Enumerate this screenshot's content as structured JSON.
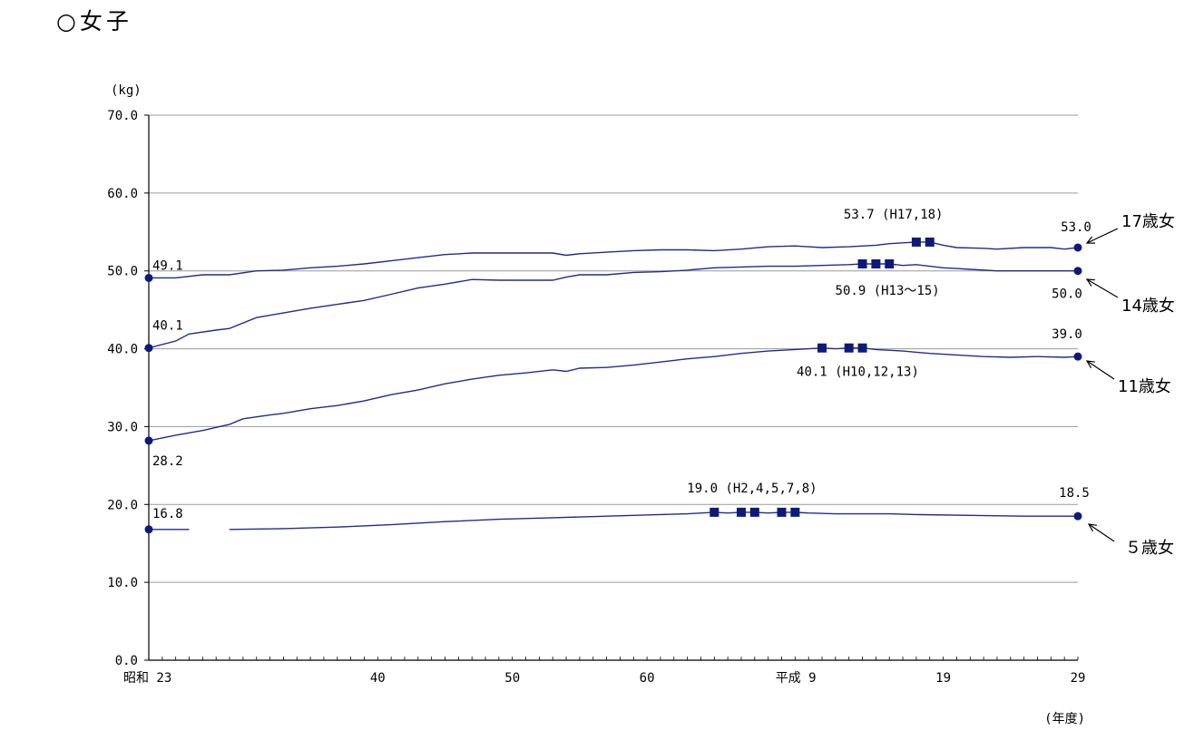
{
  "title": "○女子",
  "colors": {
    "line": "#1f2d8c",
    "marker": "#0d1a7a",
    "grid": "#9a9a9a",
    "axis": "#000000"
  },
  "chart_data": {
    "type": "line",
    "ylabel": "(kg)",
    "xlabel": "(年度)",
    "ylim": [
      0,
      70
    ],
    "xlim": [
      1948,
      2017
    ],
    "grid": true,
    "y_ticks": [
      "70.0",
      "60.0",
      "50.0",
      "40.0",
      "30.0",
      "20.0",
      "10.0",
      "0.0"
    ],
    "x_ticks": [
      {
        "year": 1948,
        "label": "昭和 23"
      },
      {
        "year": 1965,
        "label": "40"
      },
      {
        "year": 1975,
        "label": "50"
      },
      {
        "year": 1985,
        "label": "60"
      },
      {
        "year": 1997,
        "label": "平成 9"
      },
      {
        "year": 2007,
        "label": "19"
      },
      {
        "year": 2017,
        "label": "29"
      }
    ],
    "series": [
      {
        "name": "17歳女",
        "points": [
          [
            1948,
            49.1
          ],
          [
            1950,
            49.1
          ],
          [
            1952,
            49.5
          ],
          [
            1954,
            49.5
          ],
          [
            1956,
            50.0
          ],
          [
            1958,
            50.1
          ],
          [
            1960,
            50.4
          ],
          [
            1962,
            50.6
          ],
          [
            1964,
            50.9
          ],
          [
            1966,
            51.3
          ],
          [
            1968,
            51.7
          ],
          [
            1970,
            52.1
          ],
          [
            1972,
            52.3
          ],
          [
            1975,
            52.3
          ],
          [
            1976,
            52.3
          ],
          [
            1978,
            52.3
          ],
          [
            1979,
            52.0
          ],
          [
            1980,
            52.2
          ],
          [
            1982,
            52.4
          ],
          [
            1984,
            52.6
          ],
          [
            1986,
            52.7
          ],
          [
            1988,
            52.7
          ],
          [
            1990,
            52.6
          ],
          [
            1992,
            52.8
          ],
          [
            1994,
            53.1
          ],
          [
            1996,
            53.2
          ],
          [
            1998,
            53.0
          ],
          [
            2000,
            53.1
          ],
          [
            2002,
            53.3
          ],
          [
            2003,
            53.5
          ],
          [
            2004,
            53.6
          ],
          [
            2005,
            53.7
          ],
          [
            2006,
            53.7
          ],
          [
            2007,
            53.3
          ],
          [
            2008,
            53.0
          ],
          [
            2010,
            52.9
          ],
          [
            2011,
            52.8
          ],
          [
            2013,
            53.0
          ],
          [
            2015,
            53.0
          ],
          [
            2016,
            52.8
          ],
          [
            2017,
            53.0
          ]
        ],
        "start_label": "49.1",
        "end_label": "53.0",
        "max_label": "53.7 (H17,18)",
        "max_years": [
          2005,
          2006
        ]
      },
      {
        "name": "14歳女",
        "points": [
          [
            1948,
            40.1
          ],
          [
            1950,
            41.0
          ],
          [
            1951,
            41.9
          ],
          [
            1953,
            42.4
          ],
          [
            1954,
            42.6
          ],
          [
            1956,
            44.0
          ],
          [
            1958,
            44.6
          ],
          [
            1960,
            45.2
          ],
          [
            1962,
            45.7
          ],
          [
            1964,
            46.2
          ],
          [
            1966,
            47.0
          ],
          [
            1968,
            47.8
          ],
          [
            1970,
            48.3
          ],
          [
            1972,
            48.9
          ],
          [
            1974,
            48.8
          ],
          [
            1976,
            48.8
          ],
          [
            1978,
            48.8
          ],
          [
            1979,
            49.2
          ],
          [
            1980,
            49.5
          ],
          [
            1982,
            49.5
          ],
          [
            1984,
            49.8
          ],
          [
            1986,
            49.9
          ],
          [
            1988,
            50.1
          ],
          [
            1990,
            50.4
          ],
          [
            1992,
            50.5
          ],
          [
            1994,
            50.6
          ],
          [
            1996,
            50.6
          ],
          [
            1998,
            50.7
          ],
          [
            2000,
            50.8
          ],
          [
            2001,
            50.9
          ],
          [
            2002,
            50.9
          ],
          [
            2003,
            50.9
          ],
          [
            2004,
            50.7
          ],
          [
            2005,
            50.8
          ],
          [
            2006,
            50.6
          ],
          [
            2007,
            50.4
          ],
          [
            2008,
            50.3
          ],
          [
            2009,
            50.2
          ],
          [
            2011,
            50.0
          ],
          [
            2013,
            50.0
          ],
          [
            2015,
            50.0
          ],
          [
            2017,
            50.0
          ]
        ],
        "start_label": "40.1",
        "end_label": "50.0",
        "max_label": "50.9 (H13～15)",
        "max_years": [
          2001,
          2002,
          2003
        ]
      },
      {
        "name": "11歳女",
        "points": [
          [
            1948,
            28.2
          ],
          [
            1950,
            28.9
          ],
          [
            1952,
            29.5
          ],
          [
            1954,
            30.3
          ],
          [
            1955,
            31.0
          ],
          [
            1957,
            31.5
          ],
          [
            1958,
            31.7
          ],
          [
            1960,
            32.3
          ],
          [
            1962,
            32.7
          ],
          [
            1964,
            33.3
          ],
          [
            1966,
            34.1
          ],
          [
            1968,
            34.7
          ],
          [
            1970,
            35.5
          ],
          [
            1972,
            36.1
          ],
          [
            1974,
            36.6
          ],
          [
            1976,
            36.9
          ],
          [
            1978,
            37.3
          ],
          [
            1979,
            37.1
          ],
          [
            1980,
            37.5
          ],
          [
            1982,
            37.6
          ],
          [
            1984,
            37.9
          ],
          [
            1986,
            38.3
          ],
          [
            1988,
            38.7
          ],
          [
            1990,
            39.0
          ],
          [
            1992,
            39.4
          ],
          [
            1994,
            39.7
          ],
          [
            1996,
            39.9
          ],
          [
            1998,
            40.1
          ],
          [
            1999,
            40.0
          ],
          [
            2000,
            40.1
          ],
          [
            2001,
            40.1
          ],
          [
            2002,
            39.9
          ],
          [
            2004,
            39.7
          ],
          [
            2006,
            39.4
          ],
          [
            2008,
            39.2
          ],
          [
            2010,
            39.0
          ],
          [
            2012,
            38.9
          ],
          [
            2014,
            39.0
          ],
          [
            2016,
            38.9
          ],
          [
            2017,
            39.0
          ]
        ],
        "start_label": "28.2",
        "end_label": "39.0",
        "max_label": "40.1 (H10,12,13)",
        "max_years": [
          1998,
          2000,
          2001
        ]
      },
      {
        "name": "５歳女",
        "segments": [
          [
            [
              1948,
              16.8
            ],
            [
              1951,
              16.8
            ]
          ],
          [
            [
              1954,
              16.8
            ],
            [
              1958,
              16.9
            ],
            [
              1962,
              17.1
            ],
            [
              1966,
              17.4
            ],
            [
              1970,
              17.8
            ],
            [
              1974,
              18.1
            ],
            [
              1978,
              18.3
            ],
            [
              1982,
              18.5
            ],
            [
              1986,
              18.7
            ],
            [
              1988,
              18.8
            ],
            [
              1990,
              19.0
            ],
            [
              1991,
              18.9
            ],
            [
              1992,
              19.0
            ],
            [
              1993,
              19.0
            ],
            [
              1994,
              18.9
            ],
            [
              1995,
              19.0
            ],
            [
              1996,
              19.0
            ],
            [
              1997,
              18.9
            ],
            [
              1999,
              18.8
            ],
            [
              2001,
              18.8
            ],
            [
              2003,
              18.8
            ],
            [
              2005,
              18.7
            ],
            [
              2009,
              18.6
            ],
            [
              2013,
              18.5
            ],
            [
              2017,
              18.5
            ]
          ]
        ],
        "start_label": "16.8",
        "end_label": "18.5",
        "max_label": "19.0 (H2,4,5,7,8)",
        "max_years": [
          1990,
          1992,
          1993,
          1995,
          1996
        ]
      }
    ]
  }
}
